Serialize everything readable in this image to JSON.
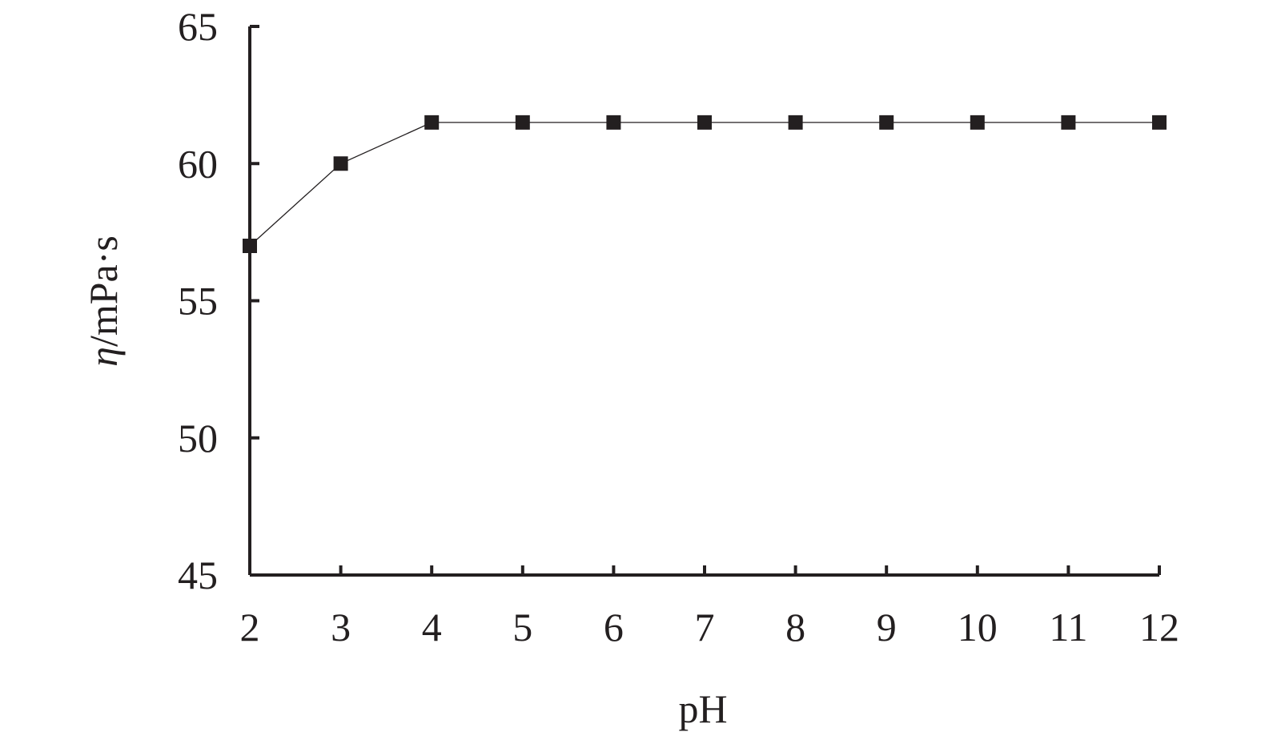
{
  "chart_data": {
    "type": "line",
    "xlabel": "pH",
    "ylabel_symbol": "η",
    "ylabel_unit": "/mPa·s",
    "x": [
      2,
      3,
      4,
      5,
      6,
      7,
      8,
      9,
      10,
      11,
      12
    ],
    "series": [
      {
        "values": [
          57,
          60,
          61.5,
          61.5,
          61.5,
          61.5,
          61.5,
          61.5,
          61.5,
          61.5,
          61.5
        ]
      }
    ],
    "xlim": [
      2,
      12
    ],
    "ylim": [
      45,
      65
    ],
    "xticks": [
      "2",
      "3",
      "4",
      "5",
      "6",
      "7",
      "8",
      "9",
      "10",
      "11",
      "12"
    ],
    "yticks": [
      "45",
      "50",
      "55",
      "60",
      "65"
    ],
    "grid": false,
    "marker": "square",
    "colors": {
      "line": "#231f20",
      "marker": "#231f20",
      "background": "#ffffff"
    }
  }
}
